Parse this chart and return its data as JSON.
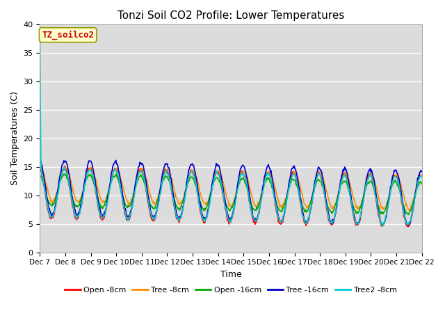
{
  "title": "Tonzi Soil CO2 Profile: Lower Temperatures",
  "xlabel": "Time",
  "ylabel": "Soil Temperatures (C)",
  "ylim": [
    0,
    40
  ],
  "yticks": [
    0,
    5,
    10,
    15,
    20,
    25,
    30,
    35,
    40
  ],
  "background_color": "#dcdcdc",
  "plot_bg": "#dcdcdc",
  "annotation_text": "TZ_soilco2",
  "annotation_bg": "#ffffcc",
  "annotation_border": "#999900",
  "annotation_text_color": "#cc0000",
  "series": {
    "Open -8cm": {
      "color": "#ff0000",
      "lw": 1.2
    },
    "Tree -8cm": {
      "color": "#ff8c00",
      "lw": 1.2
    },
    "Open -16cm": {
      "color": "#00aa00",
      "lw": 1.2
    },
    "Tree -16cm": {
      "color": "#0000cc",
      "lw": 1.2
    },
    "Tree2 -8cm": {
      "color": "#00cccc",
      "lw": 1.2
    }
  },
  "legend_order": [
    "Open -8cm",
    "Tree -8cm",
    "Open -16cm",
    "Tree -16cm",
    "Tree2 -8cm"
  ],
  "n_days": 15,
  "pts_per_day": 48,
  "tick_labels": [
    "Dec 7",
    "Dec 8",
    "Dec 9",
    "Dec 10",
    "Dec 11",
    "Dec 12",
    "Dec 13",
    "Dec 14",
    "Dec 15",
    "Dec 16",
    "Dec 17",
    "Dec 18",
    "Dec 19",
    "Dec 20",
    "Dec 21",
    "Dec 22"
  ]
}
